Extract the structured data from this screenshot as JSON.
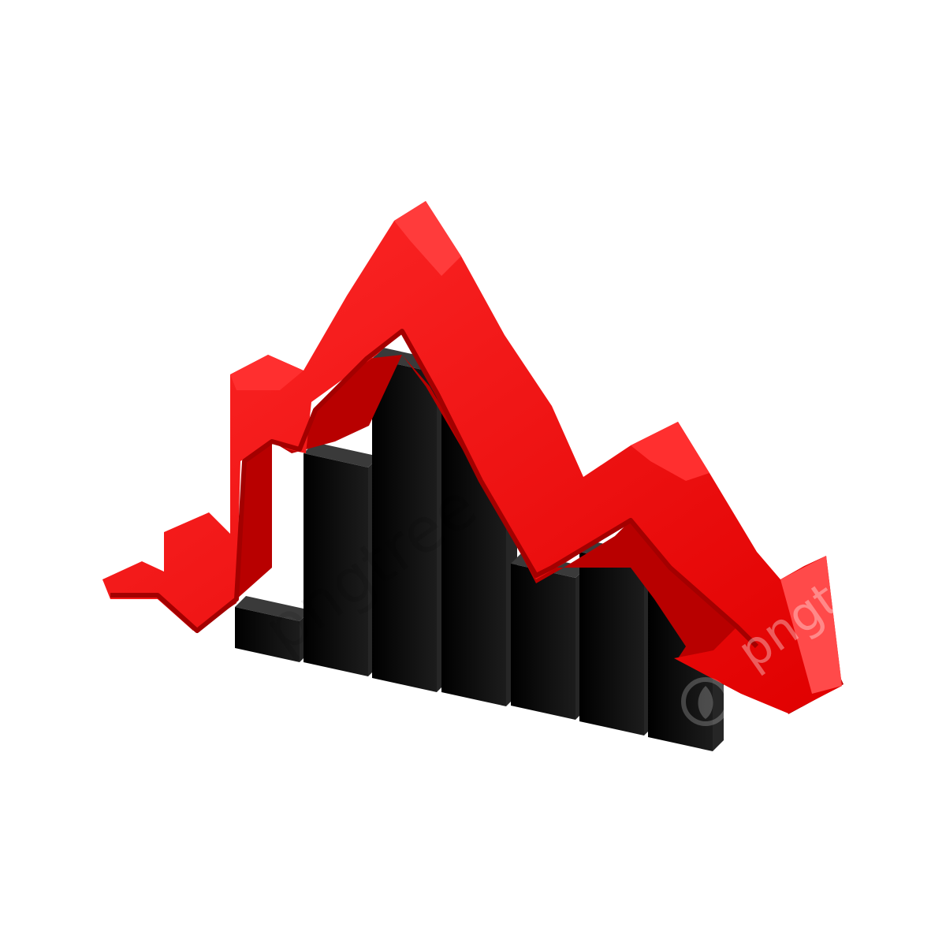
{
  "illustration": {
    "subject": "decline-trend-3d-icon",
    "bar_count": 7,
    "colors": {
      "background": "#ffffff",
      "arrow_front": "#ff1a1a",
      "arrow_top": "#ff2c2c",
      "arrow_side": "#b80000",
      "bar_front": "#0b0b0b",
      "bar_side": "#262626",
      "bar_top": "#3a3a3a"
    }
  },
  "watermark": {
    "text": "pngtree"
  }
}
